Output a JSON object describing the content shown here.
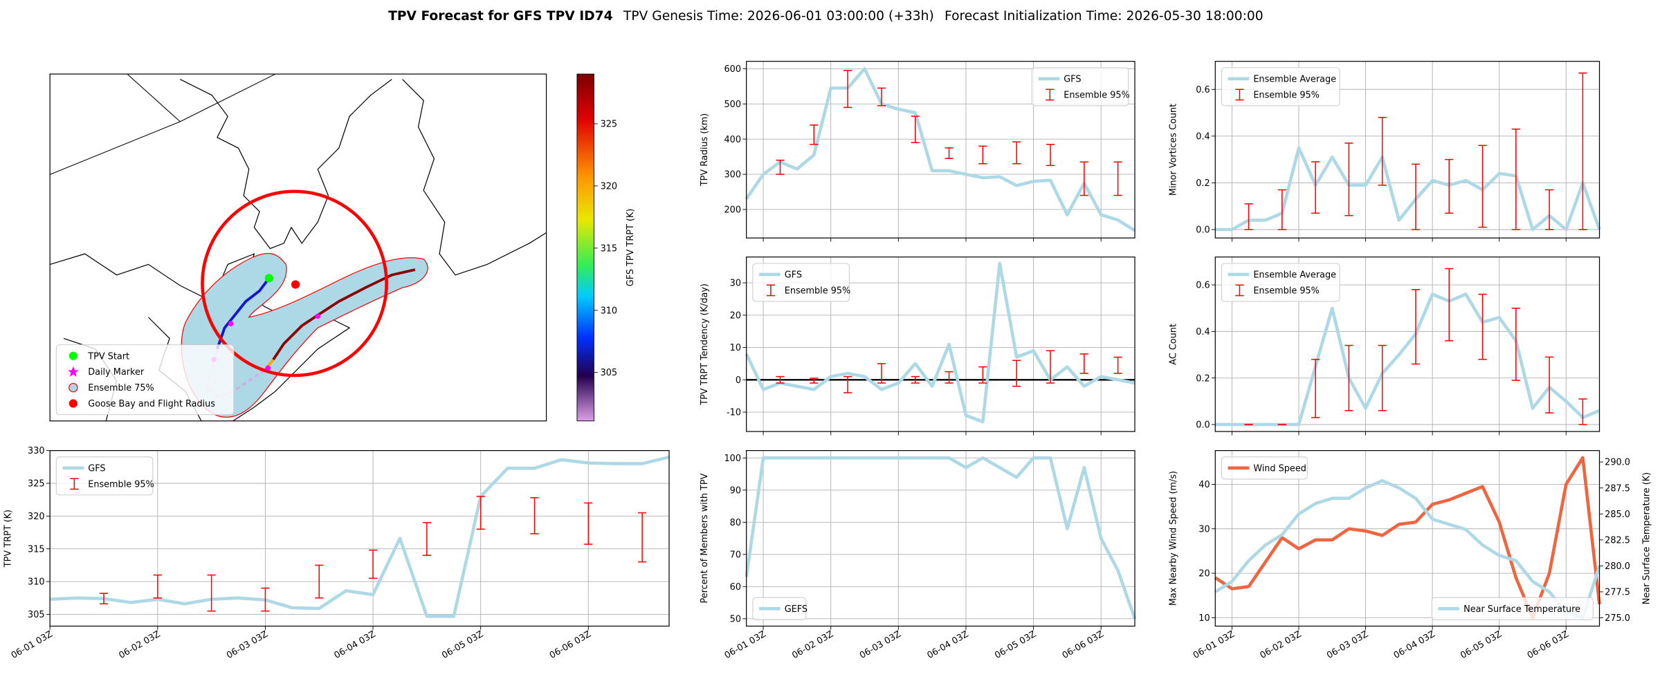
{
  "figure_title": {
    "main": "TPV Forecast for GFS TPV ID74",
    "genesis": "TPV Genesis Time: 2026-06-01 03:00:00 (+33h)",
    "init": "Forecast Initialization Time: 2026-05-30 18:00:00"
  },
  "chart_data": [
    {
      "type": "map",
      "legend": "lower left",
      "entries": [
        {
          "name": "TPV Start",
          "color": "#00ff00",
          "marker": "circle"
        },
        {
          "name": "Daily Marker",
          "color": "#ff00ff",
          "marker": "star"
        },
        {
          "name": "Ensemble 75%",
          "color": "#add8e6",
          "edgecolor": "#ff0000",
          "marker": "patch"
        },
        {
          "name": "Goose Bay and Flight Radius",
          "color": "#ff0000",
          "marker": "circle"
        }
      ],
      "colorbar": {
        "label": "GFS TPV TRPT (K)",
        "lim": [
          301.1,
          329
        ],
        "ticks": [
          305,
          310,
          315,
          320,
          325
        ]
      }
    },
    {
      "type": "line",
      "ylabel": "TPV Radius (km)",
      "xlim": [
        -6,
        132
      ],
      "xticks": [
        0,
        24,
        48,
        72,
        96,
        120
      ],
      "ylim": [
        119,
        621
      ],
      "yticks": [
        200,
        300,
        400,
        500,
        600
      ],
      "grid": true,
      "legend": "upper right",
      "series": [
        {
          "name": "GFS",
          "kind": "line",
          "color": "#add8e6",
          "x": [
            -6,
            0,
            6,
            12,
            18,
            24,
            30,
            36,
            42,
            48,
            54,
            60,
            66,
            72,
            78,
            84,
            90,
            96,
            102,
            108,
            114,
            120,
            126,
            132
          ],
          "values": [
            230,
            300,
            335,
            315,
            355,
            545,
            545,
            600,
            500,
            485,
            475,
            310,
            310,
            300,
            290,
            293,
            268,
            280,
            283,
            185,
            275,
            185,
            170,
            140
          ]
        },
        {
          "name": "Ensemble 95%",
          "kind": "errorbar",
          "color": "#ff0000",
          "x": [
            6,
            18,
            30,
            42,
            54,
            66,
            78,
            90,
            102,
            114,
            126
          ],
          "low": [
            300,
            385,
            490,
            495,
            390,
            345,
            330,
            330,
            325,
            240,
            240
          ],
          "high": [
            340,
            440,
            595,
            545,
            465,
            375,
            380,
            392,
            385,
            335,
            335
          ]
        }
      ]
    },
    {
      "type": "line",
      "ylabel": "TPV TRPT Tendency (K/day)",
      "xlim": [
        -6,
        132
      ],
      "xticks": [
        0,
        24,
        48,
        72,
        96,
        120
      ],
      "ylim": [
        -16,
        38
      ],
      "yticks": [
        -10,
        0,
        10,
        20,
        30
      ],
      "grid": true,
      "zero_line": 0,
      "legend": "upper left",
      "series": [
        {
          "name": "GFS",
          "kind": "line",
          "color": "#add8e6",
          "x": [
            -6,
            0,
            6,
            12,
            18,
            24,
            30,
            36,
            42,
            48,
            54,
            60,
            66,
            72,
            78,
            84,
            90,
            96,
            102,
            108,
            114,
            120,
            126,
            132
          ],
          "values": [
            8,
            -3,
            -1,
            -2,
            -3,
            1,
            2,
            1,
            -3,
            -1,
            5,
            -2,
            11,
            -11,
            -13,
            36,
            7,
            9,
            0,
            4,
            -2,
            1,
            0,
            -1
          ]
        },
        {
          "name": "Ensemble 95%",
          "kind": "errorbar",
          "color": "#ff0000",
          "x": [
            6,
            18,
            30,
            42,
            54,
            66,
            78,
            90,
            102,
            114,
            126
          ],
          "low": [
            -1,
            -1,
            -4,
            -1,
            -1,
            -1,
            -1,
            -2,
            -1,
            2,
            2
          ],
          "high": [
            1,
            0.5,
            1,
            5,
            1,
            2.5,
            4,
            6,
            9,
            8,
            7
          ]
        }
      ]
    },
    {
      "type": "line",
      "ylabel": "Percent of Members with TPV",
      "xlim": [
        -6,
        132
      ],
      "xticks": [
        {
          "value": 0,
          "label": "06-01 03Z"
        },
        {
          "value": 24,
          "label": "06-02 03Z"
        },
        {
          "value": 48,
          "label": "06-03 03Z"
        },
        {
          "value": 72,
          "label": "06-04 03Z"
        },
        {
          "value": 96,
          "label": "06-05 03Z"
        },
        {
          "value": 120,
          "label": "06-06 03Z"
        }
      ],
      "ylim": [
        47.7,
        102.3
      ],
      "yticks": [
        50,
        60,
        70,
        80,
        90,
        100
      ],
      "grid": true,
      "legend": "lower left",
      "series": [
        {
          "name": "GEFS",
          "kind": "line",
          "color": "#add8e6",
          "x": [
            -6,
            0,
            6,
            12,
            18,
            24,
            30,
            36,
            42,
            48,
            54,
            60,
            66,
            72,
            78,
            84,
            90,
            96,
            102,
            108,
            114,
            120,
            126,
            132
          ],
          "values": [
            63,
            100,
            100,
            100,
            100,
            100,
            100,
            100,
            100,
            100,
            100,
            100,
            100,
            97,
            100,
            97,
            94,
            100,
            100,
            78,
            97,
            75,
            65,
            50
          ]
        }
      ]
    },
    {
      "type": "line",
      "ylabel": "Minor Vortices Count",
      "xlim": [
        -6,
        132
      ],
      "xticks": [
        0,
        24,
        48,
        72,
        96,
        120
      ],
      "ylim": [
        -0.036,
        0.72
      ],
      "yticks": [
        {
          "value": 0,
          "label": "0.0"
        },
        0.2,
        0.4,
        0.6
      ],
      "grid": true,
      "legend": "upper left",
      "series": [
        {
          "name": "Ensemble Average",
          "kind": "line",
          "color": "#add8e6",
          "x": [
            -6,
            0,
            6,
            12,
            18,
            24,
            30,
            36,
            42,
            48,
            54,
            60,
            66,
            72,
            78,
            84,
            90,
            96,
            102,
            108,
            114,
            120,
            126,
            132
          ],
          "values": [
            0,
            0,
            0.04,
            0.04,
            0.07,
            0.35,
            0.19,
            0.31,
            0.19,
            0.19,
            0.31,
            0.04,
            0.13,
            0.21,
            0.19,
            0.21,
            0.17,
            0.24,
            0.23,
            0,
            0.06,
            0,
            0.2,
            0
          ]
        },
        {
          "name": "Ensemble 95%",
          "kind": "errorbar",
          "color": "#ff0000",
          "x": [
            6,
            18,
            30,
            42,
            54,
            66,
            78,
            90,
            102,
            114,
            126
          ],
          "low": [
            0,
            0,
            0.07,
            0.06,
            0.19,
            0,
            0.07,
            0.01,
            0,
            0,
            0
          ],
          "high": [
            0.11,
            0.17,
            0.29,
            0.37,
            0.48,
            0.28,
            0.3,
            0.36,
            0.43,
            0.17,
            0.67
          ]
        }
      ]
    },
    {
      "type": "line",
      "ylabel": "AC Count",
      "xlim": [
        -6,
        132
      ],
      "xticks": [
        0,
        24,
        48,
        72,
        96,
        120
      ],
      "ylim": [
        -0.03,
        0.72
      ],
      "yticks": [
        {
          "value": 0,
          "label": "0.0"
        },
        0.2,
        0.4,
        0.6
      ],
      "grid": true,
      "legend": "upper left",
      "series": [
        {
          "name": "Ensemble Average",
          "kind": "line",
          "color": "#add8e6",
          "x": [
            -6,
            0,
            6,
            12,
            18,
            24,
            30,
            36,
            42,
            48,
            54,
            60,
            66,
            72,
            78,
            84,
            90,
            96,
            102,
            108,
            114,
            120,
            126,
            132
          ],
          "values": [
            0,
            0,
            0,
            0,
            0,
            0,
            0.25,
            0.5,
            0.2,
            0.07,
            0.22,
            0.3,
            0.39,
            0.56,
            0.53,
            0.56,
            0.44,
            0.46,
            0.36,
            0.07,
            0.16,
            0.1,
            0.03,
            0.06
          ]
        },
        {
          "name": "Ensemble 95%",
          "kind": "errorbar",
          "color": "#ff0000",
          "x": [
            6,
            18,
            30,
            42,
            54,
            66,
            78,
            90,
            102,
            114,
            126
          ],
          "low": [
            0,
            0,
            0.03,
            0.06,
            0.06,
            0.26,
            0.36,
            0.28,
            0.19,
            0.05,
            0
          ],
          "high": [
            0,
            0,
            0.28,
            0.34,
            0.34,
            0.58,
            0.67,
            0.56,
            0.5,
            0.29,
            0.11
          ]
        }
      ]
    },
    {
      "type": "line",
      "ylabel": "Max Nearby Wind Speed (m/s)",
      "ylabel_color": "#f0643f",
      "y2label": "Near Surface Temperature (K)",
      "y2_color": "#4169e1",
      "xlim": [
        -6,
        132
      ],
      "xticks": [
        {
          "value": 0,
          "label": "06-01 03Z"
        },
        {
          "value": 24,
          "label": "06-02 03Z"
        },
        {
          "value": 48,
          "label": "06-03 03Z"
        },
        {
          "value": 72,
          "label": "06-04 03Z"
        },
        {
          "value": 96,
          "label": "06-05 03Z"
        },
        {
          "value": 120,
          "label": "06-06 03Z"
        }
      ],
      "ylim": [
        8.1,
        47.6
      ],
      "yticks": [
        10,
        20,
        30,
        40
      ],
      "y2lim": [
        274.2,
        291.1
      ],
      "y2ticks": [
        {
          "value": 275,
          "label": "275.0"
        },
        277.5,
        {
          "value": 280,
          "label": "280.0"
        },
        282.5,
        {
          "value": 285,
          "label": "285.0"
        },
        287.5,
        {
          "value": 290,
          "label": "290.0"
        }
      ],
      "grid": true,
      "series": [
        {
          "name": "Wind Speed",
          "kind": "line",
          "color": "#f0643f",
          "legend": "upper left",
          "x": [
            -6,
            0,
            6,
            12,
            18,
            24,
            30,
            36,
            42,
            48,
            54,
            60,
            66,
            72,
            78,
            84,
            90,
            96,
            102,
            108,
            114,
            120,
            126,
            132
          ],
          "values": [
            19,
            16.5,
            17,
            22.5,
            28,
            25.5,
            27.5,
            27.5,
            30,
            29.5,
            28.5,
            31,
            31.5,
            35.5,
            36.5,
            38,
            39.5,
            31.5,
            19,
            10,
            20,
            40,
            46,
            13
          ]
        },
        {
          "name": "Near Surface Temperature",
          "kind": "line",
          "axis": "y2",
          "color": "#add8e6",
          "legend": "lower right",
          "x": [
            -6,
            0,
            6,
            12,
            18,
            24,
            30,
            36,
            42,
            48,
            54,
            60,
            66,
            72,
            78,
            84,
            90,
            96,
            102,
            108,
            114,
            120,
            126,
            132
          ],
          "values": [
            277.5,
            278.5,
            280.5,
            282,
            283,
            285,
            286,
            286.5,
            286.5,
            287.5,
            288.2,
            287.5,
            286.5,
            284.5,
            284,
            283.5,
            282,
            281,
            280.5,
            278.5,
            277.5,
            275.5,
            275,
            280
          ]
        }
      ]
    },
    {
      "type": "line",
      "ylabel": "TPV TRPT (K)",
      "xlim": [
        0,
        138
      ],
      "xticks": [
        {
          "value": 0,
          "label": "06-01 03Z"
        },
        {
          "value": 24,
          "label": "06-02 03Z"
        },
        {
          "value": 48,
          "label": "06-03 03Z"
        },
        {
          "value": 72,
          "label": "06-04 03Z"
        },
        {
          "value": 96,
          "label": "06-05 03Z"
        },
        {
          "value": 120,
          "label": "06-06 03Z"
        }
      ],
      "ylim": [
        303.2,
        330
      ],
      "yticks": [
        305,
        310,
        315,
        320,
        325,
        330
      ],
      "grid": true,
      "legend": "upper left",
      "series": [
        {
          "name": "GFS",
          "kind": "line",
          "color": "#add8e6",
          "x": [
            0,
            6,
            12,
            18,
            24,
            30,
            36,
            42,
            48,
            54,
            60,
            66,
            72,
            78,
            84,
            90,
            96,
            102,
            108,
            114,
            120,
            126,
            132,
            138
          ],
          "values": [
            307.3,
            307.5,
            307.4,
            306.8,
            307.3,
            306.6,
            307.3,
            307.5,
            307.2,
            306,
            305.9,
            308.6,
            308,
            316.6,
            304.7,
            304.7,
            323,
            327.3,
            327.3,
            328.6,
            328.1,
            328,
            328,
            329
          ]
        },
        {
          "name": "Ensemble 95%",
          "kind": "errorbar",
          "color": "#ff0000",
          "x": [
            12,
            24,
            36,
            48,
            60,
            72,
            84,
            96,
            108,
            120,
            132
          ],
          "low": [
            306.6,
            307.5,
            305.5,
            305.5,
            307.5,
            310.5,
            314,
            318,
            317.3,
            315.7,
            313
          ],
          "high": [
            308.2,
            311,
            311,
            309,
            312.5,
            314.8,
            319,
            323,
            322.8,
            322,
            320.5
          ]
        }
      ]
    }
  ]
}
